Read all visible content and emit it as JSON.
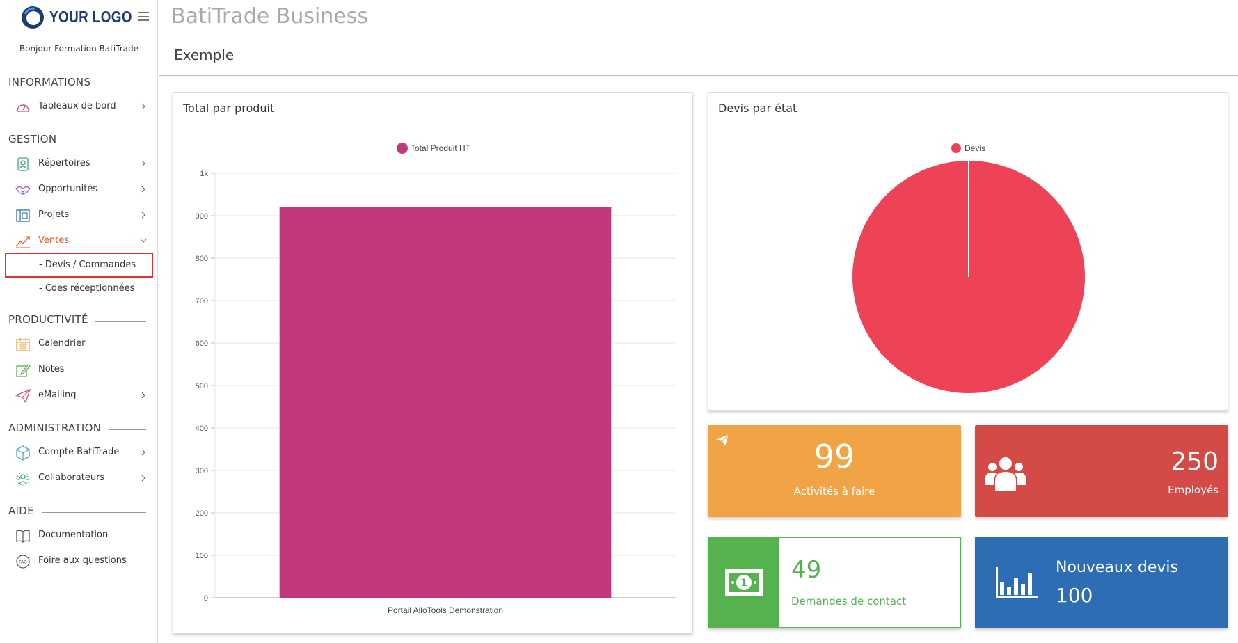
{
  "sidebar": {
    "logo_text": "YOUR LOGO",
    "greeting": "Bonjour Formation BatiTrade",
    "sections": {
      "informations": "INFORMATIONS",
      "gestion": "GESTION",
      "productivite": "PRODUCTIVITÉ",
      "administration": "ADMINISTRATION",
      "aide": "AIDE"
    },
    "items": {
      "tableaux": "Tableaux de bord",
      "repertoires": "Répertoires",
      "opportunites": "Opportunités",
      "projets": "Projets",
      "ventes": "Ventes",
      "devis_commandes": "- Devis / Commandes",
      "cdes_receptionnees": "- Cdes réceptionnées",
      "calendrier": "Calendrier",
      "notes": "Notes",
      "emailing": "eMailing",
      "compte": "Compte BatiTrade",
      "collaborateurs": "Collaborateurs",
      "documentation": "Documentation",
      "faq": "Foire aux questions"
    },
    "icons": {
      "tableaux": "speedometer-icon",
      "repertoires": "contact-card-icon",
      "opportunites": "handshake-icon",
      "projets": "blueprint-icon",
      "ventes": "trend-chart-icon",
      "calendrier": "calendar-icon",
      "notes": "pencil-note-icon",
      "emailing": "paper-plane-icon",
      "compte": "cube-icon",
      "collaborateurs": "team-icon",
      "documentation": "book-icon",
      "faq": "faq-bubble-icon"
    },
    "faq_icon_text": "FAQ"
  },
  "header": {
    "app_title": "BatiTrade Business",
    "page_title": "Exemple"
  },
  "charts": {
    "bar_title": "Total par produit",
    "pie_title": "Devis par état"
  },
  "chart_data": [
    {
      "type": "bar",
      "title": "Total par produit",
      "legend": [
        "Total Produit HT"
      ],
      "legend_position": "top",
      "categories": [
        "Portail AlloTools Demonstration"
      ],
      "series": [
        {
          "name": "Total Produit HT",
          "values": [
            920
          ],
          "color": "#c1397a"
        }
      ],
      "yticks": [
        "0",
        "100",
        "200",
        "300",
        "400",
        "500",
        "600",
        "700",
        "800",
        "900",
        "1k"
      ],
      "ylim": [
        0,
        1000
      ],
      "grid": true
    },
    {
      "type": "pie",
      "title": "Devis par état",
      "legend": [
        "Devis"
      ],
      "legend_position": "top",
      "slices": [
        {
          "label": "Devis",
          "value": 1,
          "color": "#ee4257"
        }
      ]
    }
  ],
  "stats": {
    "activites": {
      "value": "99",
      "label": "Activités à faire",
      "icon": "paper-plane-icon",
      "color": "#f0a446"
    },
    "employes": {
      "value": "250",
      "label": "Employés",
      "icon": "users-icon",
      "color": "#d34a47"
    },
    "demandes": {
      "value": "49",
      "label": "Demandes de contact",
      "icon": "banknote-icon",
      "color": "#55b24f"
    },
    "devis": {
      "value": "100",
      "label": "Nouveaux devis",
      "icon": "bar-chart-icon",
      "color": "#2d6db3"
    }
  },
  "colors": {
    "accent_orange": "#e05a24",
    "highlight_red": "#e03030",
    "bar": "#c1397a",
    "pie": "#ee4257"
  }
}
